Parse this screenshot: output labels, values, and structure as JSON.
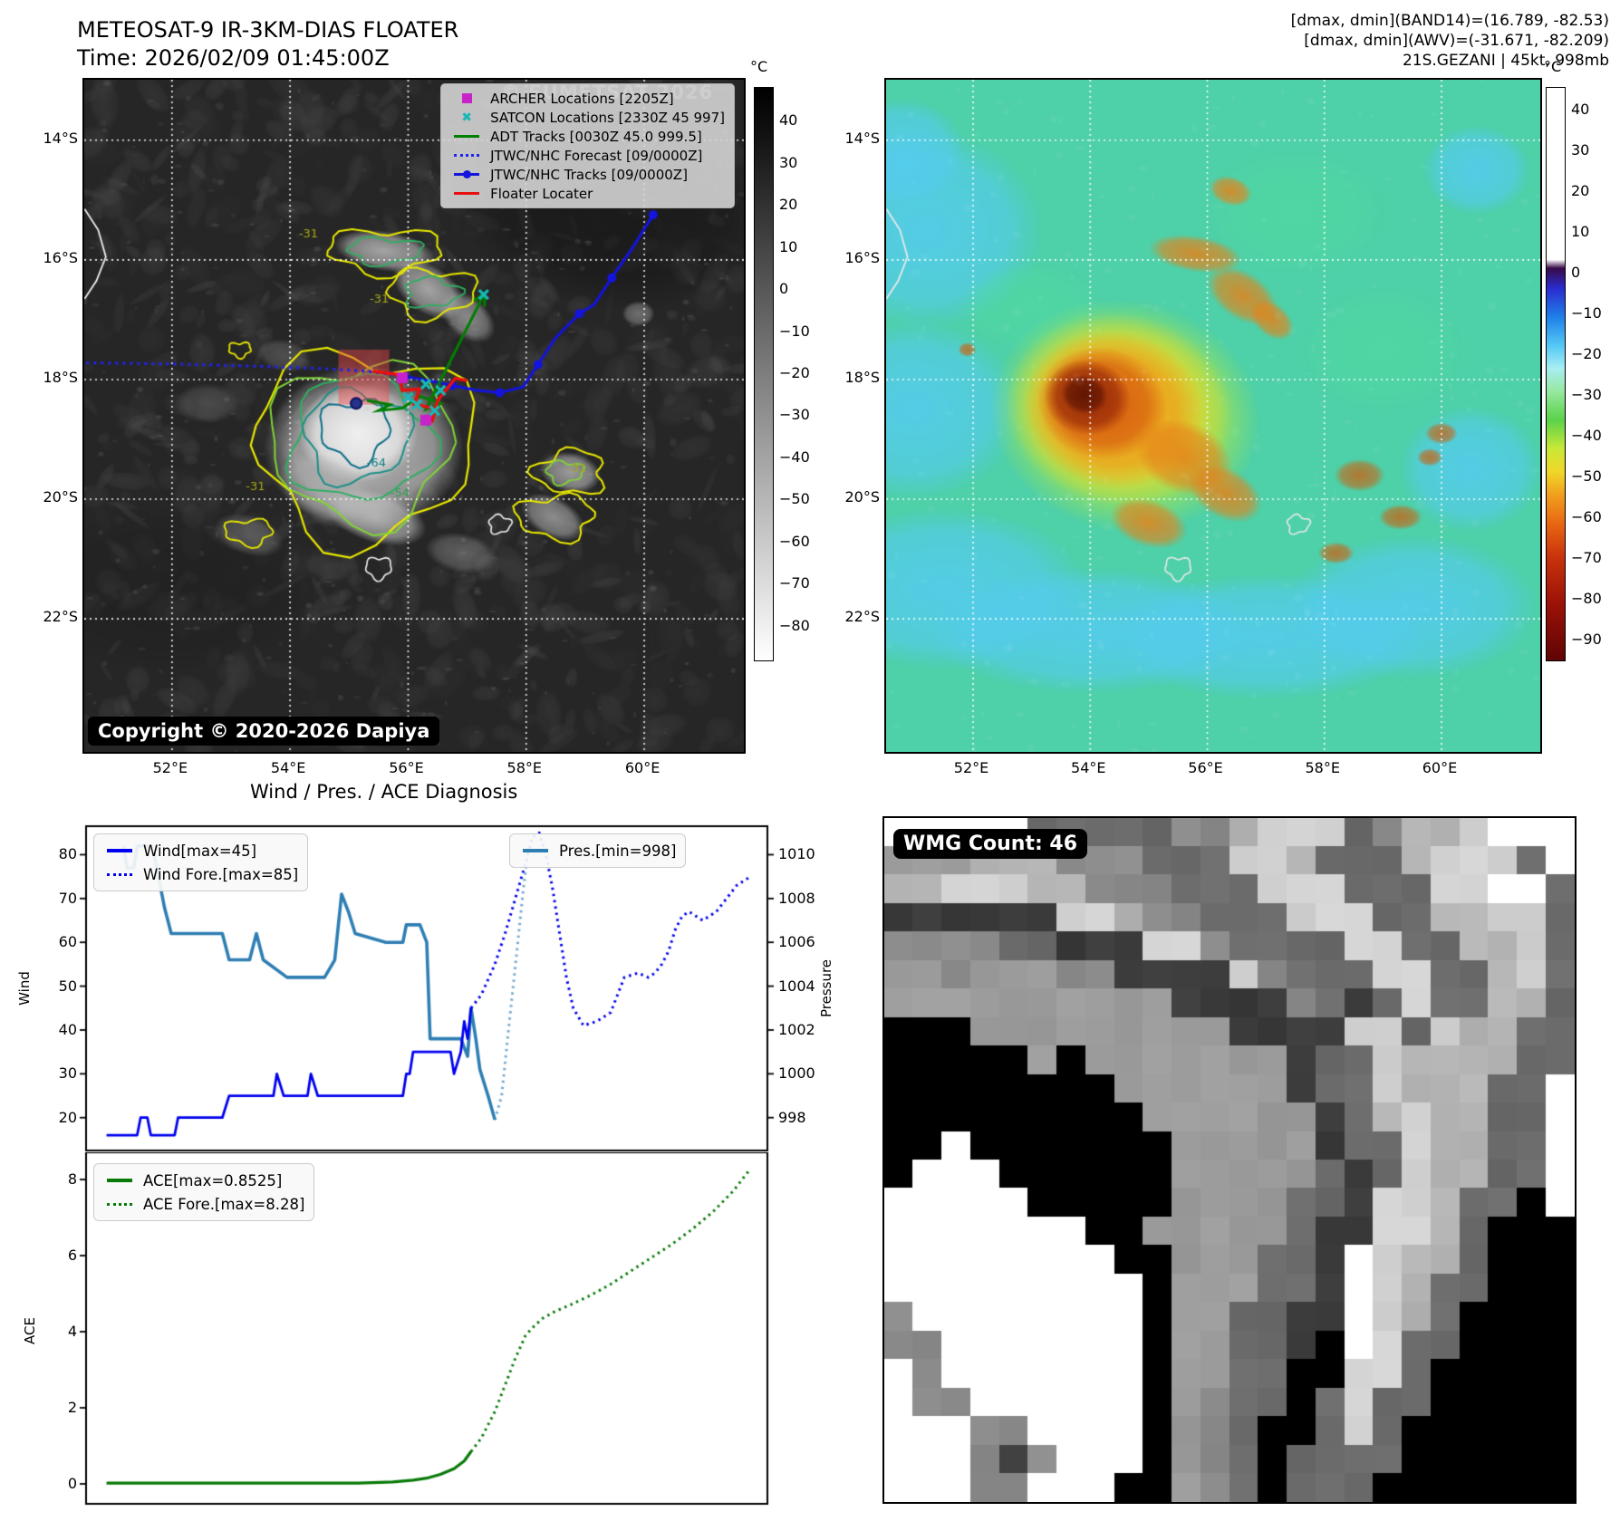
{
  "header": {
    "left": {
      "line1": "METEOSAT-9 IR-3KM-DIAS FLOATER",
      "line2": "Time: 2026/02/09 01:45:00Z"
    },
    "right": {
      "line1": "[dmax, dmin](BAND14)=(16.789, -82.53)",
      "line2": "[dmax, dmin](AWV)=(-31.671, -82.209)",
      "line3": "21S.GEZANI | 45kt, 998mb"
    }
  },
  "left_map": {
    "lat_ticks": [
      {
        "v": 14,
        "label": "14°S"
      },
      {
        "v": 16,
        "label": "16°S"
      },
      {
        "v": 18,
        "label": "18°S"
      },
      {
        "v": 20,
        "label": "20°S"
      },
      {
        "v": 22,
        "label": "22°S"
      }
    ],
    "lon_ticks": [
      {
        "v": 52,
        "label": "52°E"
      },
      {
        "v": 54,
        "label": "54°E"
      },
      {
        "v": 56,
        "label": "56°E"
      },
      {
        "v": 58,
        "label": "58°E"
      },
      {
        "v": 60,
        "label": "60°E"
      }
    ],
    "watermark": "© EUMETSAT 2026",
    "copyright": "Copyright © 2020-2026 Dapiya",
    "legend": [
      {
        "marker": "square-magenta",
        "label": "ARCHER Locations [2205Z]"
      },
      {
        "marker": "x-cyan",
        "label": "SATCON Locations [2330Z 45 997]"
      },
      {
        "marker": "line-green",
        "label": "ADT Tracks [0030Z 45.0 999.5]"
      },
      {
        "marker": "dotted-blue",
        "label": "JTWC/NHC Forecast [09/0000Z]"
      },
      {
        "marker": "line-dot-blue",
        "label": "JTWC/NHC Tracks [09/0000Z]"
      },
      {
        "marker": "line-red",
        "label": "Floater Locater"
      }
    ],
    "colorbar": {
      "title": "°C",
      "ticks": [
        "40",
        "30",
        "20",
        "10",
        "0",
        "−10",
        "−20",
        "−30",
        "−40",
        "−50",
        "−60",
        "−70",
        "−80"
      ]
    },
    "contour_labels": [
      {
        "text": "-31",
        "lon": 54.15,
        "lat": 15.62,
        "color": "#a8a818"
      },
      {
        "text": "-31",
        "lon": 55.35,
        "lat": 16.72,
        "color": "#a8a818"
      },
      {
        "text": "-64",
        "lon": 55.3,
        "lat": 19.45,
        "color": "#0e7d7d"
      },
      {
        "text": "-54",
        "lon": 55.7,
        "lat": 19.95,
        "color": "#2e9e4f"
      },
      {
        "text": "-31",
        "lon": 53.25,
        "lat": 19.85,
        "color": "#a8a818"
      },
      {
        "text": "-31",
        "lon": 58.7,
        "lat": 19.55,
        "color": "#a8a818"
      }
    ],
    "overlays": {
      "forecast_dotted": [
        [
          50.55,
          17.72
        ],
        [
          52.0,
          17.74
        ],
        [
          53.5,
          17.78
        ],
        [
          54.6,
          17.82
        ],
        [
          55.3,
          17.86
        ],
        [
          55.95,
          17.95
        ]
      ],
      "jtwc_track": [
        [
          55.95,
          17.95
        ],
        [
          56.35,
          18.02
        ],
        [
          56.75,
          18.1
        ],
        [
          57.15,
          18.18
        ],
        [
          57.55,
          18.22
        ],
        [
          57.95,
          18.12
        ],
        [
          58.2,
          17.75
        ],
        [
          58.5,
          17.3
        ],
        [
          58.9,
          16.9
        ],
        [
          59.15,
          16.75
        ],
        [
          59.45,
          16.3
        ],
        [
          59.8,
          15.8
        ],
        [
          60.15,
          15.25
        ]
      ],
      "adt_track": [
        [
          55.3,
          18.35
        ],
        [
          55.7,
          18.42
        ],
        [
          55.5,
          18.52
        ],
        [
          55.9,
          18.48
        ],
        [
          56.2,
          18.28
        ],
        [
          56.55,
          18.4
        ],
        [
          56.3,
          18.5
        ],
        [
          57.3,
          16.55
        ]
      ],
      "floater_track": [
        [
          55.4,
          17.86
        ],
        [
          55.85,
          17.92
        ],
        [
          55.9,
          18.18
        ],
        [
          56.2,
          18.16
        ],
        [
          56.1,
          18.42
        ],
        [
          56.45,
          18.48
        ],
        [
          56.4,
          18.72
        ],
        [
          56.5,
          18.35
        ],
        [
          56.8,
          17.98
        ],
        [
          57.0,
          18.02
        ]
      ],
      "archer_points": [
        [
          55.9,
          17.97
        ],
        [
          56.3,
          18.68
        ]
      ],
      "satcon_points": [
        [
          56.3,
          18.08
        ],
        [
          56.55,
          18.18
        ],
        [
          56.15,
          18.42
        ],
        [
          56.45,
          18.52
        ],
        [
          57.28,
          16.58
        ],
        [
          56.0,
          18.3
        ]
      ],
      "current_dot": [
        55.12,
        18.4
      ],
      "red_square": {
        "lon0": 54.82,
        "lat0": 17.5,
        "lon1": 55.68,
        "lat1": 18.42
      }
    }
  },
  "right_map": {
    "lat_ticks": [
      {
        "v": 14,
        "label": "14°S"
      },
      {
        "v": 16,
        "label": "16°S"
      },
      {
        "v": 18,
        "label": "18°S"
      },
      {
        "v": 20,
        "label": "20°S"
      },
      {
        "v": 22,
        "label": "22°S"
      }
    ],
    "lon_ticks": [
      {
        "v": 52,
        "label": "52°E"
      },
      {
        "v": 54,
        "label": "54°E"
      },
      {
        "v": 56,
        "label": "56°E"
      },
      {
        "v": 58,
        "label": "58°E"
      },
      {
        "v": 60,
        "label": "60°E"
      }
    ],
    "colorbar": {
      "title": "°C",
      "ticks": [
        "40",
        "30",
        "20",
        "10",
        "0",
        "−10",
        "−20",
        "−30",
        "−40",
        "−50",
        "−60",
        "−70",
        "−80",
        "−90"
      ]
    }
  },
  "charts": {
    "title": "Wind / Pres. / ACE Diagnosis",
    "wind_ylabel": "Wind",
    "pressure_ylabel": "Pressure",
    "ace_ylabel": "ACE",
    "wind_yticks": [
      80,
      70,
      60,
      50,
      40,
      30,
      20
    ],
    "pressure_yticks": [
      1010,
      1008,
      1006,
      1004,
      1002,
      1000,
      998
    ],
    "ace_yticks": [
      8,
      6,
      4,
      2,
      0
    ],
    "wind_legend": [
      {
        "marker": "line",
        "color": "#0000ee",
        "label": "Wind[max=45]"
      },
      {
        "marker": "dotted",
        "color": "#0000ee",
        "label": "Wind Fore.[max=85]"
      }
    ],
    "pres_legend": [
      {
        "marker": "line",
        "color": "#2e7eb3",
        "label": "Pres.[min=998]"
      }
    ],
    "ace_legend": [
      {
        "marker": "line",
        "color": "#077a07",
        "label": "ACE[max=0.8525]"
      },
      {
        "marker": "dotted",
        "color": "#077a07",
        "label": "ACE Fore.[max=8.28]"
      }
    ]
  },
  "chart_data": [
    {
      "type": "line",
      "title": "Wind / Pres. / ACE Diagnosis",
      "panel": "wind-pressure",
      "xlabel": "",
      "ylabel_left": "Wind",
      "ylabel_right": "Pressure",
      "ylim_wind": [
        12.5,
        86.5
      ],
      "ylim_pressure": [
        996.5,
        1011.3
      ],
      "x_units": "normalized 0-1 (no x tick labels shown)",
      "series": [
        {
          "name": "Wind[max=45]",
          "axis": "wind",
          "style": "solid",
          "color": "#0000ee",
          "points": [
            [
              0.03,
              16
            ],
            [
              0.075,
              16
            ],
            [
              0.08,
              20
            ],
            [
              0.09,
              20
            ],
            [
              0.095,
              16
            ],
            [
              0.13,
              16
            ],
            [
              0.135,
              20
            ],
            [
              0.2,
              20
            ],
            [
              0.21,
              25
            ],
            [
              0.275,
              25
            ],
            [
              0.28,
              30
            ],
            [
              0.29,
              25
            ],
            [
              0.325,
              25
            ],
            [
              0.33,
              30
            ],
            [
              0.34,
              25
            ],
            [
              0.465,
              25
            ],
            [
              0.47,
              30
            ],
            [
              0.475,
              30
            ],
            [
              0.48,
              35
            ],
            [
              0.535,
              35
            ],
            [
              0.54,
              30
            ],
            [
              0.55,
              35
            ],
            [
              0.555,
              42
            ],
            [
              0.56,
              38
            ],
            [
              0.565,
              45
            ]
          ]
        },
        {
          "name": "Wind Fore.[max=85]",
          "axis": "wind",
          "style": "dotted",
          "color": "#0000ee",
          "points": [
            [
              0.565,
              45
            ],
            [
              0.58,
              48
            ],
            [
              0.6,
              55
            ],
            [
              0.615,
              62
            ],
            [
              0.63,
              70
            ],
            [
              0.645,
              78
            ],
            [
              0.655,
              84
            ],
            [
              0.665,
              85
            ],
            [
              0.675,
              80
            ],
            [
              0.685,
              72
            ],
            [
              0.695,
              62
            ],
            [
              0.705,
              52
            ],
            [
              0.715,
              45
            ],
            [
              0.73,
              41
            ],
            [
              0.75,
              42
            ],
            [
              0.77,
              44
            ],
            [
              0.78,
              48
            ],
            [
              0.79,
              52
            ],
            [
              0.81,
              53
            ],
            [
              0.825,
              52
            ],
            [
              0.835,
              53
            ],
            [
              0.845,
              55
            ],
            [
              0.855,
              58
            ],
            [
              0.865,
              63
            ],
            [
              0.875,
              66
            ],
            [
              0.885,
              67
            ],
            [
              0.895,
              66
            ],
            [
              0.905,
              65
            ],
            [
              0.915,
              66
            ],
            [
              0.925,
              67
            ],
            [
              0.94,
              70
            ],
            [
              0.955,
              73
            ],
            [
              0.965,
              74
            ],
            [
              0.975,
              75
            ]
          ]
        },
        {
          "name": "Pres.[min=998]",
          "axis": "pressure",
          "style": "solid",
          "color": "#2e7eb3",
          "points": [
            [
              0.055,
              1010.4
            ],
            [
              0.06,
              1009.4
            ],
            [
              0.07,
              1009.4
            ],
            [
              0.075,
              1010.4
            ],
            [
              0.09,
              1010.4
            ],
            [
              0.1,
              1010
            ],
            [
              0.115,
              1007.6
            ],
            [
              0.125,
              1006.4
            ],
            [
              0.2,
              1006.4
            ],
            [
              0.21,
              1005.2
            ],
            [
              0.24,
              1005.2
            ],
            [
              0.25,
              1006.4
            ],
            [
              0.26,
              1005.2
            ],
            [
              0.295,
              1004.4
            ],
            [
              0.35,
              1004.4
            ],
            [
              0.365,
              1005.2
            ],
            [
              0.375,
              1008.2
            ],
            [
              0.385,
              1007.4
            ],
            [
              0.395,
              1006.4
            ],
            [
              0.44,
              1006
            ],
            [
              0.465,
              1006
            ],
            [
              0.47,
              1006.8
            ],
            [
              0.49,
              1006.8
            ],
            [
              0.5,
              1006
            ],
            [
              0.505,
              1001.6
            ],
            [
              0.55,
              1001.6
            ],
            [
              0.56,
              1000.8
            ],
            [
              0.565,
              1003
            ],
            [
              0.572,
              1001.6
            ],
            [
              0.578,
              1000.2
            ],
            [
              0.59,
              999
            ],
            [
              0.6,
              997.9
            ]
          ]
        },
        {
          "name": "Pres. Forecast",
          "axis": "pressure",
          "style": "dotted",
          "color": "#74a9cf",
          "points": [
            [
              0.6,
              997.9
            ],
            [
              0.61,
              999
            ],
            [
              0.62,
              1002
            ],
            [
              0.632,
              1005.5
            ],
            [
              0.642,
              1008.5
            ],
            [
              0.65,
              1010.5
            ]
          ]
        }
      ]
    },
    {
      "type": "line",
      "panel": "ace",
      "ylabel": "ACE",
      "ylim": [
        -0.5,
        8.6
      ],
      "series": [
        {
          "name": "ACE[max=0.8525]",
          "style": "solid",
          "color": "#077a07",
          "points": [
            [
              0.03,
              0.02
            ],
            [
              0.4,
              0.02
            ],
            [
              0.45,
              0.05
            ],
            [
              0.48,
              0.1
            ],
            [
              0.5,
              0.15
            ],
            [
              0.52,
              0.25
            ],
            [
              0.54,
              0.4
            ],
            [
              0.555,
              0.6
            ],
            [
              0.565,
              0.85
            ]
          ]
        },
        {
          "name": "ACE Fore.[max=8.28]",
          "style": "dotted",
          "color": "#077a07",
          "points": [
            [
              0.565,
              0.85
            ],
            [
              0.58,
              1.2
            ],
            [
              0.6,
              1.9
            ],
            [
              0.615,
              2.6
            ],
            [
              0.63,
              3.3
            ],
            [
              0.645,
              3.9
            ],
            [
              0.655,
              4.1
            ],
            [
              0.67,
              4.35
            ],
            [
              0.69,
              4.55
            ],
            [
              0.71,
              4.7
            ],
            [
              0.74,
              4.95
            ],
            [
              0.77,
              5.25
            ],
            [
              0.8,
              5.6
            ],
            [
              0.83,
              5.95
            ],
            [
              0.86,
              6.3
            ],
            [
              0.89,
              6.7
            ],
            [
              0.92,
              7.15
            ],
            [
              0.95,
              7.7
            ],
            [
              0.975,
              8.28
            ]
          ]
        }
      ]
    }
  ],
  "wmg": {
    "label": "WMG Count: 46",
    "palette": {
      "0": "#000000",
      "3": "#3c3c3c",
      "4": "#6b6b6b",
      "5": "#8b8b8b",
      "6": "#9c9c9c",
      "7": "#b4b4b4",
      "8": "#d2d2d2",
      "9": "#ffffff"
    },
    "grid": [
      "999994444455788845778999",
      "666777555444887444788849",
      "778887755544488844488994",
      "333333887554448884477884",
      "555544333885444488447784",
      "665666553333854448844784",
      "666666666633335434844774",
      "000666666666333388487744",
      "000006066666663448777744",
      "000000006666663448777449",
      "000000000666666347877449",
      "009000000066666344877449",
      "099900000066666434877449",
      "999990000066664438874409",
      "999999900666664338874000",
      "999999990066644398774000",
      "999999999066644398744000",
      "599999999066443398740000",
      "559999999066443098440000",
      "959999999066440088400000",
      "955999999065440484400000",
      "999559999065400484000000",
      "999535999065404444000000",
      "999559990065404440000000"
    ]
  },
  "colors": {
    "wind": "#0000ee",
    "pressure": "#2e7eb3",
    "pressure_fore": "#74a9cf",
    "ace": "#077a07",
    "adt_track": "#007f00",
    "jtwc_track": "#1414dd",
    "forecast": "#2222ee",
    "floater": "#e81010",
    "archer": "#c823c8",
    "satcon": "#18b8b8",
    "red_square_fill": "rgba(235,70,70,0.45)"
  }
}
